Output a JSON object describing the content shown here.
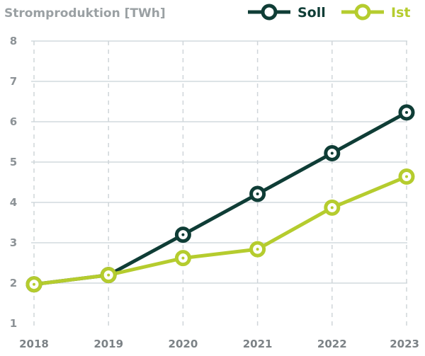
{
  "chart_data": {
    "type": "line",
    "title": "Stromproduktion [TWh]",
    "xlabel": "",
    "ylabel": "Stromproduktion [TWh]",
    "categories": [
      "2018",
      "2019",
      "2020",
      "2021",
      "2022",
      "2023"
    ],
    "ylim": [
      1,
      8
    ],
    "yticks": [
      "1",
      "2",
      "3",
      "4",
      "5",
      "6",
      "7",
      "8"
    ],
    "legend_position": "top-right",
    "series": [
      {
        "name": "Soll",
        "color": "#0f3d36",
        "values": [
          1.97,
          2.2,
          3.2,
          4.21,
          5.22,
          6.23
        ]
      },
      {
        "name": "Ist",
        "color": "#b5cc2e",
        "values": [
          1.97,
          2.2,
          2.62,
          2.84,
          3.87,
          4.64
        ]
      }
    ]
  }
}
